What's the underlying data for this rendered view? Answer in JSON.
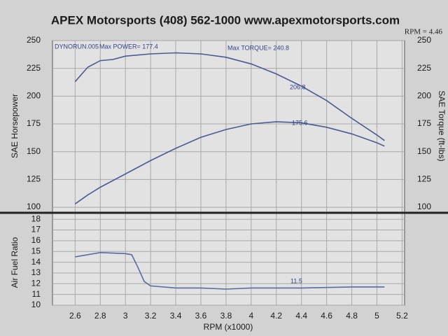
{
  "chart_data": [
    {
      "type": "line",
      "title": "APEX Motorsports (408) 562-1000 www.apexmotorsports.com",
      "ylabel": "SAE Horsepower",
      "y2label": "SAE Torque (ft-lbs)",
      "annotations": [
        "DYNORUN.005",
        "Max POWER= 177.4",
        "Max TORQUE= 240.8",
        "RPM = 4.46",
        "206.8",
        "175.6"
      ],
      "xlim": [
        2.42,
        5.22
      ],
      "ylim": [
        95,
        250
      ],
      "yticks": [
        100,
        125,
        150,
        175,
        200,
        225,
        250
      ],
      "y2lim": [
        95,
        250
      ],
      "y2ticks": [
        100,
        125,
        150,
        175,
        200,
        225,
        250
      ],
      "grid": true,
      "x": [
        2.6,
        2.7,
        2.8,
        2.9,
        3.0,
        3.2,
        3.4,
        3.6,
        3.8,
        4.0,
        4.2,
        4.4,
        4.6,
        4.8,
        5.0,
        5.06
      ],
      "series": [
        {
          "color": "#4a5a94",
          "axis": "y2",
          "values": [
            213,
            226,
            232,
            233,
            236,
            238,
            239,
            238,
            235,
            229,
            220,
            209,
            196,
            180,
            165,
            160
          ]
        },
        {
          "color": "#4a5a94",
          "values": [
            103,
            111,
            118,
            124,
            130,
            142,
            153,
            163,
            170,
            175,
            177,
            176,
            172,
            166,
            158,
            155
          ]
        }
      ]
    },
    {
      "type": "line",
      "ylabel": "Air Fuel Ratio",
      "xlabel": "RPM (x1000)",
      "annotations": [
        "11.5"
      ],
      "xlim": [
        2.42,
        5.22
      ],
      "xticks": [
        2.6,
        2.8,
        3.0,
        3.2,
        3.4,
        3.6,
        3.8,
        4.0,
        4.2,
        4.4,
        4.6,
        4.8,
        5.0,
        5.2
      ],
      "ylim": [
        10,
        18.6
      ],
      "yticks": [
        10,
        11,
        12,
        13,
        14,
        15,
        16,
        17,
        18
      ],
      "grid": true,
      "x": [
        2.6,
        2.8,
        3.0,
        3.05,
        3.1,
        3.15,
        3.2,
        3.4,
        3.6,
        3.8,
        4.0,
        4.2,
        4.4,
        4.6,
        4.8,
        5.06
      ],
      "series": [
        {
          "color": "#5a6aa4",
          "values": [
            14.5,
            14.9,
            14.8,
            14.7,
            13.5,
            12.2,
            11.8,
            11.6,
            11.6,
            11.5,
            11.6,
            11.6,
            11.6,
            11.65,
            11.7,
            11.7
          ]
        }
      ]
    }
  ]
}
